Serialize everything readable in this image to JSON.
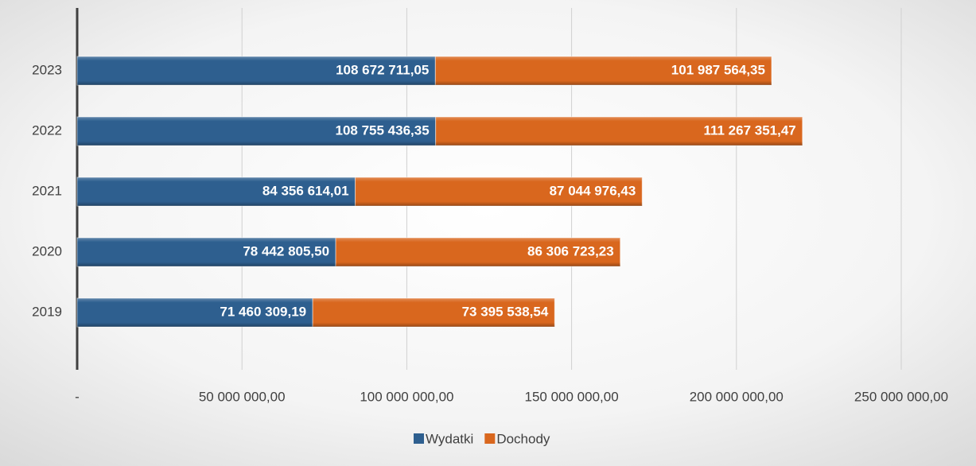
{
  "chart_data": {
    "type": "bar",
    "orientation": "horizontal",
    "stacked": true,
    "categories": [
      "2019",
      "2020",
      "2021",
      "2022",
      "2023"
    ],
    "series": [
      {
        "name": "Wydatki",
        "color": "#2e5f8f",
        "values": [
          71460309.19,
          78442805.5,
          84356614.01,
          108755436.35,
          108672711.05
        ],
        "value_labels": [
          "71 460 309,19",
          "78 442 805,50",
          "84 356 614,01",
          "108 755 436,35",
          "108 672 711,05"
        ]
      },
      {
        "name": "Dochody",
        "color": "#d9671e",
        "values": [
          73395538.54,
          86306723.23,
          87044976.43,
          111267351.47,
          101987564.35
        ],
        "value_labels": [
          "73 395 538,54",
          "86 306 723,23",
          "87 044 976,43",
          "111 267 351,47",
          "101 987 564,35"
        ]
      }
    ],
    "xlim": [
      0,
      250000000
    ],
    "xticks": [
      {
        "value": 0,
        "label": "-"
      },
      {
        "value": 50000000,
        "label": "50 000 000,00"
      },
      {
        "value": 100000000,
        "label": "100 000 000,00"
      },
      {
        "value": 150000000,
        "label": "150 000 000,00"
      },
      {
        "value": 200000000,
        "label": "200 000 000,00"
      },
      {
        "value": 250000000,
        "label": "250 000 000,00"
      }
    ],
    "grid": true,
    "legend": "bottom"
  }
}
